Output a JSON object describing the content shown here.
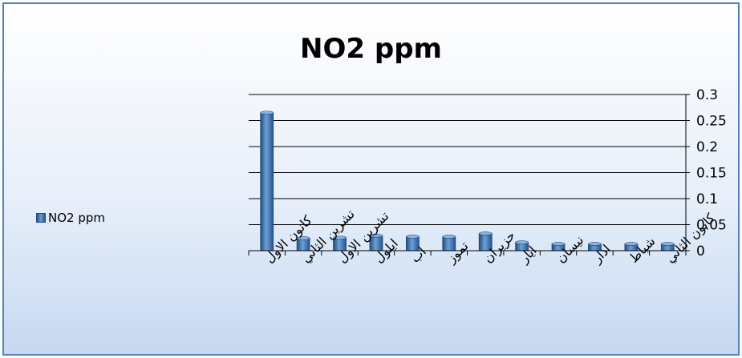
{
  "chart_data": {
    "type": "bar",
    "title": "NO2 ppm",
    "categories": [
      "كانون الاول",
      "تشرين الثاني",
      "تشرين الاول",
      "ايلول",
      "اب",
      "تموز",
      "حزيران",
      "ايار",
      "نيسان",
      "اذار",
      "شباط",
      "كانون الثاني"
    ],
    "series": [
      {
        "name": "NO2 ppm",
        "values": [
          0.265,
          0.024,
          0.025,
          0.029,
          0.027,
          0.027,
          0.033,
          0.016,
          0.013,
          0.013,
          0.013,
          0.013
        ]
      }
    ],
    "ylim": [
      0,
      0.3
    ],
    "yticks": [
      "0",
      "0.05",
      "0.1",
      "0.15",
      "0.2",
      "0.25",
      "0.3"
    ],
    "y_axis_position": "right",
    "grid": true,
    "legend_position": "left",
    "colors": {
      "bar": "#4f81bd",
      "bar_dark": "#1f4e79",
      "grid": "#000000",
      "frame": "#4f81bd"
    }
  }
}
